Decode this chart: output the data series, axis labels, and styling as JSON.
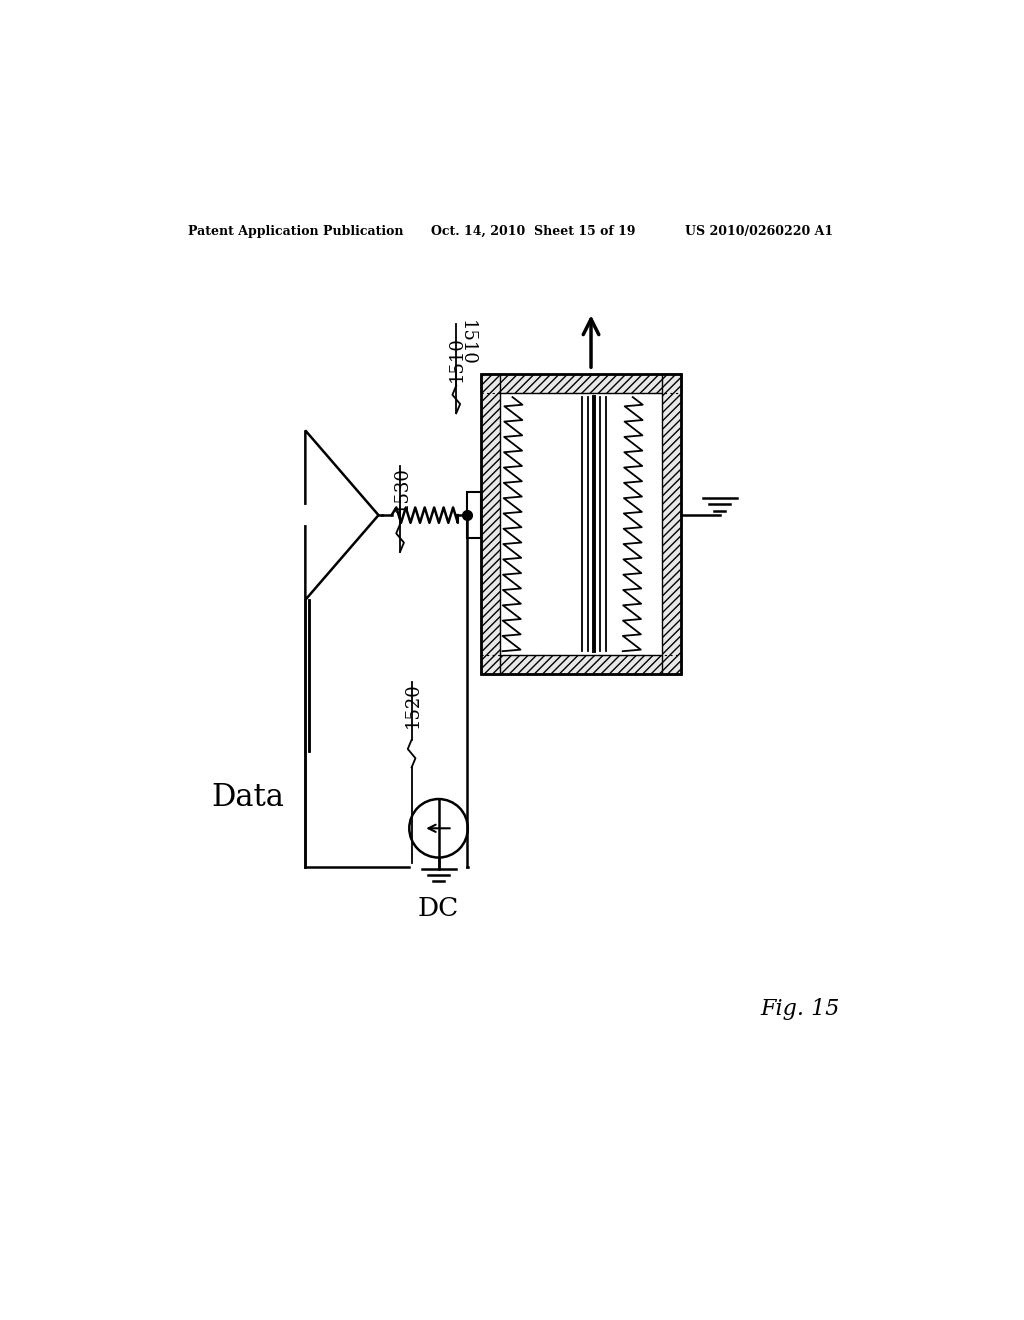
{
  "bg_color": "#ffffff",
  "header_left": "Patent Application Publication",
  "header_mid": "Oct. 14, 2010  Sheet 15 of 19",
  "header_right": "US 2010/0260220 A1",
  "fig_label": "Fig. 15",
  "label_1510": "1510",
  "label_1520": "1520",
  "label_1530": "1530",
  "label_data": "Data",
  "label_dc": "DC"
}
